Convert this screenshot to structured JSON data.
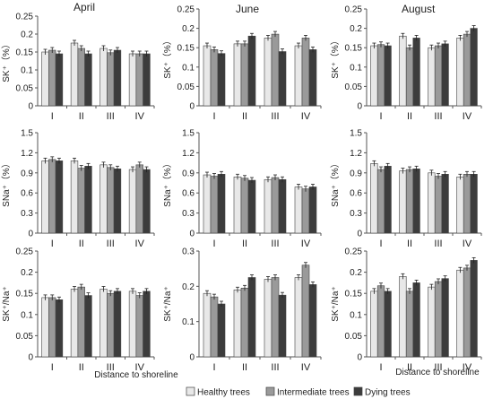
{
  "figure": {
    "legend_position": "bottom",
    "legend": [
      "Healthy trees",
      "Intermediate trees",
      "Dying trees"
    ],
    "series_colors": [
      "#e8e8e8",
      "#9a9a9a",
      "#3c3c3c"
    ],
    "axis_title": "Distance to shoreline",
    "month_titles": [
      "April",
      "June",
      "August"
    ]
  },
  "chart_data": [
    {
      "type": "bar",
      "title": "April",
      "ylabel": "SK⁺（%）",
      "ylim": [
        0,
        0.25
      ],
      "yticks": [
        "0",
        "0.05",
        "0.1",
        "0.15",
        "0.2",
        "0.25"
      ],
      "categories": [
        "I",
        "II",
        "III",
        "IV"
      ],
      "xlabel": "",
      "series": [
        {
          "name": "Healthy trees",
          "values": [
            0.15,
            0.175,
            0.16,
            0.145
          ]
        },
        {
          "name": "Intermediate trees",
          "values": [
            0.155,
            0.16,
            0.148,
            0.145
          ]
        },
        {
          "name": "Dying trees",
          "values": [
            0.145,
            0.145,
            0.155,
            0.145
          ]
        }
      ]
    },
    {
      "type": "bar",
      "title": "June",
      "ylabel": "SK⁺（%）",
      "ylim": [
        0,
        0.25
      ],
      "yticks": [
        "0",
        "0.05",
        "0.1",
        "0.15",
        "0.2",
        "0.25"
      ],
      "categories": [
        "I",
        "II",
        "III",
        "IV"
      ],
      "xlabel": "",
      "series": [
        {
          "name": "Healthy trees",
          "values": [
            0.155,
            0.16,
            0.175,
            0.155
          ]
        },
        {
          "name": "Intermediate trees",
          "values": [
            0.145,
            0.16,
            0.185,
            0.175
          ]
        },
        {
          "name": "Dying trees",
          "values": [
            0.135,
            0.18,
            0.14,
            0.145
          ]
        }
      ]
    },
    {
      "type": "bar",
      "title": "August",
      "ylabel": "SK⁺（%）",
      "ylim": [
        0,
        0.25
      ],
      "yticks": [
        "0",
        "0.05",
        "0.1",
        "0.15",
        "0.2",
        "0.25"
      ],
      "categories": [
        "I",
        "II",
        "III",
        "IV"
      ],
      "xlabel": "",
      "series": [
        {
          "name": "Healthy trees",
          "values": [
            0.155,
            0.18,
            0.15,
            0.175
          ]
        },
        {
          "name": "Intermediate trees",
          "values": [
            0.158,
            0.15,
            0.155,
            0.185
          ]
        },
        {
          "name": "Dying trees",
          "values": [
            0.155,
            0.175,
            0.16,
            0.2
          ]
        }
      ]
    },
    {
      "type": "bar",
      "title": "",
      "ylabel": "SNa⁺（%）",
      "ylim": [
        0,
        1.5
      ],
      "yticks": [
        "0",
        "0.3",
        "0.6",
        "0.9",
        "1.2",
        "1.5"
      ],
      "categories": [
        "I",
        "II",
        "III",
        "IV"
      ],
      "xlabel": "",
      "series": [
        {
          "name": "Healthy trees",
          "values": [
            1.08,
            1.08,
            1.02,
            0.95
          ]
        },
        {
          "name": "Intermediate trees",
          "values": [
            1.1,
            0.97,
            0.98,
            1.02
          ]
        },
        {
          "name": "Dying trees",
          "values": [
            1.08,
            1.0,
            0.96,
            0.95
          ]
        }
      ]
    },
    {
      "type": "bar",
      "title": "",
      "ylabel": "SNa⁺（%）",
      "ylim": [
        0,
        1.5
      ],
      "yticks": [
        "0",
        "0.3",
        "0.6",
        "0.9",
        "1.2",
        "1.5"
      ],
      "categories": [
        "I",
        "II",
        "III",
        "IV"
      ],
      "xlabel": "",
      "series": [
        {
          "name": "Healthy trees",
          "values": [
            0.87,
            0.84,
            0.8,
            0.69
          ]
        },
        {
          "name": "Intermediate trees",
          "values": [
            0.85,
            0.82,
            0.83,
            0.66
          ]
        },
        {
          "name": "Dying trees",
          "values": [
            0.88,
            0.79,
            0.8,
            0.69
          ]
        }
      ]
    },
    {
      "type": "bar",
      "title": "",
      "ylabel": "SNa⁺（%）",
      "ylim": [
        0,
        1.5
      ],
      "yticks": [
        "0",
        "0.3",
        "0.6",
        "0.9",
        "1.2",
        "1.5"
      ],
      "categories": [
        "I",
        "II",
        "III",
        "IV"
      ],
      "xlabel": "",
      "series": [
        {
          "name": "Healthy trees",
          "values": [
            1.04,
            0.93,
            0.9,
            0.84
          ]
        },
        {
          "name": "Intermediate trees",
          "values": [
            0.95,
            0.95,
            0.85,
            0.88
          ]
        },
        {
          "name": "Dying trees",
          "values": [
            1.0,
            0.96,
            0.88,
            0.88
          ]
        }
      ]
    },
    {
      "type": "bar",
      "title": "",
      "ylabel": "SK⁺/Na⁺",
      "ylim": [
        0,
        0.25
      ],
      "yticks": [
        "0",
        "0.05",
        "0.1",
        "0.15",
        "0.2",
        "0.25"
      ],
      "categories": [
        "I",
        "II",
        "III",
        "IV"
      ],
      "xlabel": "Distance to shoreline",
      "series": [
        {
          "name": "Healthy trees",
          "values": [
            0.14,
            0.16,
            0.16,
            0.155
          ]
        },
        {
          "name": "Intermediate trees",
          "values": [
            0.14,
            0.165,
            0.15,
            0.145
          ]
        },
        {
          "name": "Dying trees",
          "values": [
            0.135,
            0.145,
            0.155,
            0.155
          ]
        }
      ]
    },
    {
      "type": "bar",
      "title": "",
      "ylabel": "SK⁺/Na⁺",
      "ylim": [
        0,
        0.3
      ],
      "yticks": [
        "0",
        "0.1",
        "0.2",
        "0.3"
      ],
      "categories": [
        "I",
        "II",
        "III",
        "IV"
      ],
      "xlabel": "",
      "series": [
        {
          "name": "Healthy trees",
          "values": [
            0.18,
            0.19,
            0.22,
            0.225
          ]
        },
        {
          "name": "Intermediate trees",
          "values": [
            0.17,
            0.195,
            0.225,
            0.26
          ]
        },
        {
          "name": "Dying trees",
          "values": [
            0.15,
            0.225,
            0.175,
            0.205
          ]
        }
      ]
    },
    {
      "type": "bar",
      "title": "",
      "ylabel": "SK⁺/Na⁺",
      "ylim": [
        0,
        0.25
      ],
      "yticks": [
        "0",
        "0.05",
        "0.1",
        "0.15",
        "0.2",
        "0.25"
      ],
      "categories": [
        "I",
        "II",
        "III",
        "IV"
      ],
      "xlabel": "Distance to shoreline",
      "series": [
        {
          "name": "Healthy trees",
          "values": [
            0.155,
            0.19,
            0.165,
            0.205
          ]
        },
        {
          "name": "Intermediate trees",
          "values": [
            0.168,
            0.155,
            0.178,
            0.21
          ]
        },
        {
          "name": "Dying trees",
          "values": [
            0.155,
            0.175,
            0.185,
            0.228
          ]
        }
      ]
    }
  ]
}
